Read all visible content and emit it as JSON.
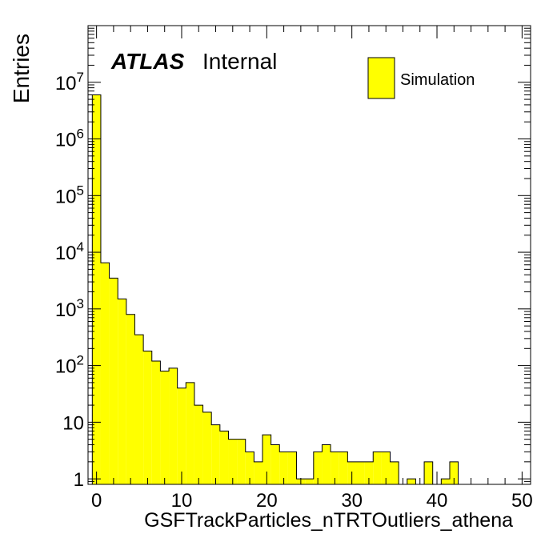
{
  "chart_data": {
    "type": "bar",
    "ylabel": "Entries",
    "xlabel": "GSFTrackParticles_nTRTOutliers_athena",
    "yscale": "log",
    "xlim": [
      -1,
      51
    ],
    "ylim": [
      0.8,
      100000000
    ],
    "bar_color": "#ffff00",
    "bar_edge_color": "#000000",
    "label_main": "ATLAS",
    "label_sub": "Internal",
    "legend": {
      "entries": [
        "Simulation"
      ],
      "position": "top-right"
    },
    "x_ticks": [
      {
        "value": 0,
        "label": "0"
      },
      {
        "value": 10,
        "label": "10"
      },
      {
        "value": 20,
        "label": "20"
      },
      {
        "value": 30,
        "label": "30"
      },
      {
        "value": 40,
        "label": "40"
      },
      {
        "value": 50,
        "label": "50"
      }
    ],
    "y_ticks": [
      {
        "value": 1,
        "base": "1",
        "exp": ""
      },
      {
        "value": 10,
        "base": "10",
        "exp": ""
      },
      {
        "value": 100,
        "base": "10",
        "exp": "2"
      },
      {
        "value": 1000,
        "base": "10",
        "exp": "3"
      },
      {
        "value": 10000,
        "base": "10",
        "exp": "4"
      },
      {
        "value": 100000,
        "base": "10",
        "exp": "5"
      },
      {
        "value": 1000000,
        "base": "10",
        "exp": "6"
      },
      {
        "value": 10000000,
        "base": "10",
        "exp": "7"
      }
    ],
    "bin_edges_start": -0.5,
    "bin_width": 1,
    "values": [
      6000000,
      6500,
      3500,
      1500,
      800,
      350,
      180,
      120,
      80,
      90,
      40,
      50,
      20,
      15,
      9,
      7,
      5,
      5,
      3,
      2,
      6,
      4,
      3,
      3,
      1,
      1,
      3,
      4,
      3,
      3,
      2,
      2,
      2,
      3,
      3,
      2,
      0,
      1,
      0,
      2,
      0,
      1,
      2,
      0,
      0,
      0,
      0,
      0,
      0,
      0
    ]
  }
}
